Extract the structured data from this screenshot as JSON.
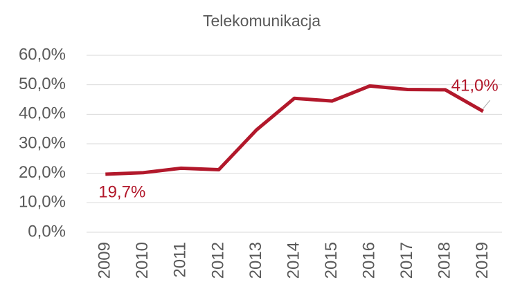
{
  "chart_data": {
    "type": "line",
    "title": "Telekomunikacja",
    "categories": [
      "2009",
      "2010",
      "2011",
      "2012",
      "2013",
      "2014",
      "2015",
      "2016",
      "2017",
      "2018",
      "2019"
    ],
    "series": [
      {
        "name": "Telekomunikacja",
        "color": "#b2182b",
        "values": [
          19.7,
          20.2,
          21.7,
          21.2,
          34.7,
          45.4,
          44.5,
          49.6,
          48.4,
          48.3,
          41.0
        ],
        "value_labels": [
          "19,7%",
          null,
          null,
          null,
          null,
          null,
          null,
          null,
          null,
          null,
          "41,0%"
        ]
      }
    ],
    "ylim": [
      0,
      60
    ],
    "yticks": [
      {
        "value": 0,
        "label": "0,0%"
      },
      {
        "value": 10,
        "label": "10,0%"
      },
      {
        "value": 20,
        "label": "20,0%"
      },
      {
        "value": 30,
        "label": "30,0%"
      },
      {
        "value": 40,
        "label": "40,0%"
      },
      {
        "value": 50,
        "label": "50,0%"
      },
      {
        "value": 60,
        "label": "60,0%"
      }
    ],
    "grid": true
  }
}
